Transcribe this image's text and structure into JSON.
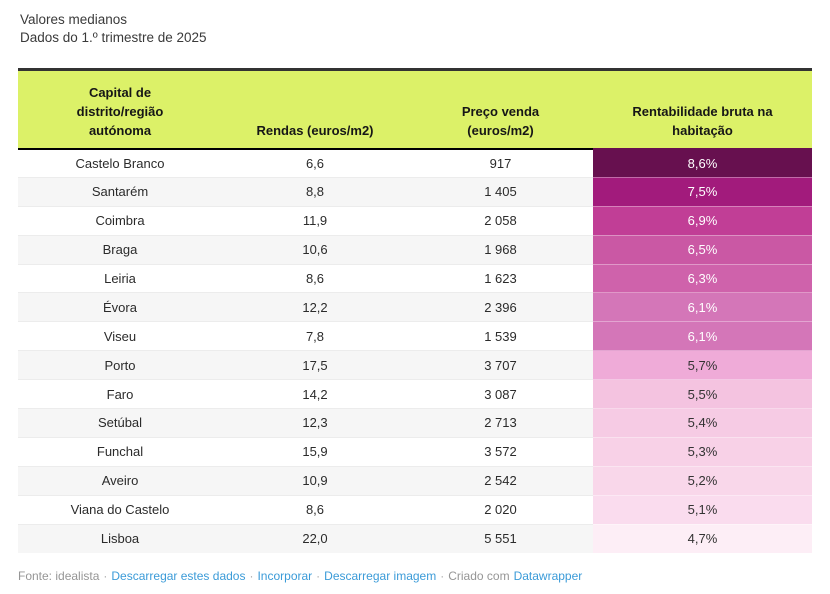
{
  "header": {
    "title": "Valores medianos",
    "subtitle": "Dados do 1.º trimestre de 2025"
  },
  "chart_data": {
    "type": "table",
    "title": "Valores medianos",
    "subtitle": "Dados do 1.º trimestre de 2025",
    "layout": {
      "header_background": "#dcf168",
      "zebra_striping": true,
      "cell_alignment": "center",
      "heatmap_column": "Rentabilidade bruta na habitação",
      "heatmap_palette": "white-pink-to-dark-purple, darker = higher yield"
    },
    "columns": [
      {
        "label": "Capital de\ndistrito/região\nautónoma"
      },
      {
        "label": "Rendas (euros/m2)"
      },
      {
        "label": "Preço venda\n(euros/m2)"
      },
      {
        "label": "Rentabilidade bruta na\nhabitação"
      }
    ],
    "rows": [
      {
        "capital": "Castelo Branco",
        "rendas": "6,6",
        "preco_venda": "917",
        "rentabilidade": "8,6%",
        "cell_color": "#67104f",
        "cell_text_color": "#ffffff"
      },
      {
        "capital": "Santarém",
        "rendas": "8,8",
        "preco_venda": "1 405",
        "rentabilidade": "7,5%",
        "cell_color": "#a21b7c",
        "cell_text_color": "#ffffff"
      },
      {
        "capital": "Coimbra",
        "rendas": "11,9",
        "preco_venda": "2 058",
        "rentabilidade": "6,9%",
        "cell_color": "#c13e96",
        "cell_text_color": "#ffffff"
      },
      {
        "capital": "Braga",
        "rendas": "10,6",
        "preco_venda": "1 968",
        "rentabilidade": "6,5%",
        "cell_color": "#ca58a4",
        "cell_text_color": "#ffffff"
      },
      {
        "capital": "Leiria",
        "rendas": "8,6",
        "preco_venda": "1 623",
        "rentabilidade": "6,3%",
        "cell_color": "#cf62ab",
        "cell_text_color": "#ffffff"
      },
      {
        "capital": "Évora",
        "rendas": "12,2",
        "preco_venda": "2 396",
        "rentabilidade": "6,1%",
        "cell_color": "#d476b8",
        "cell_text_color": "#ffffff"
      },
      {
        "capital": "Viseu",
        "rendas": "7,8",
        "preco_venda": "1 539",
        "rentabilidade": "6,1%",
        "cell_color": "#d476b8",
        "cell_text_color": "#ffffff"
      },
      {
        "capital": "Porto",
        "rendas": "17,5",
        "preco_venda": "3 707",
        "rentabilidade": "5,7%",
        "cell_color": "#efabd8",
        "cell_text_color": "#333333"
      },
      {
        "capital": "Faro",
        "rendas": "14,2",
        "preco_venda": "3 087",
        "rentabilidade": "5,5%",
        "cell_color": "#f4c3e0",
        "cell_text_color": "#333333"
      },
      {
        "capital": "Setúbal",
        "rendas": "12,3",
        "preco_venda": "2 713",
        "rentabilidade": "5,4%",
        "cell_color": "#f6cbe4",
        "cell_text_color": "#333333"
      },
      {
        "capital": "Funchal",
        "rendas": "15,9",
        "preco_venda": "3 572",
        "rentabilidade": "5,3%",
        "cell_color": "#f8d1e7",
        "cell_text_color": "#333333"
      },
      {
        "capital": "Aveiro",
        "rendas": "10,9",
        "preco_venda": "2 542",
        "rentabilidade": "5,2%",
        "cell_color": "#f9d7ea",
        "cell_text_color": "#333333"
      },
      {
        "capital": "Viana do Castelo",
        "rendas": "8,6",
        "preco_venda": "2 020",
        "rentabilidade": "5,1%",
        "cell_color": "#fadcee",
        "cell_text_color": "#333333"
      },
      {
        "capital": "Lisboa",
        "rendas": "22,0",
        "preco_venda": "5 551",
        "rentabilidade": "4,7%",
        "cell_color": "#fdeef6",
        "cell_text_color": "#333333"
      }
    ]
  },
  "footer": {
    "items": [
      {
        "name": "footer-source",
        "type": "text",
        "text": "Fonte: idealista"
      },
      {
        "name": "footer-separator",
        "type": "sep",
        "text": "·"
      },
      {
        "name": "footer-link-download-data",
        "type": "link",
        "text": "Descarregar estes dados"
      },
      {
        "name": "footer-separator",
        "type": "sep",
        "text": "·"
      },
      {
        "name": "footer-link-embed",
        "type": "link",
        "text": "Incorporar"
      },
      {
        "name": "footer-separator",
        "type": "sep",
        "text": "·"
      },
      {
        "name": "footer-link-download-image",
        "type": "link",
        "text": "Descarregar imagem"
      },
      {
        "name": "footer-separator",
        "type": "sep",
        "text": "·"
      },
      {
        "name": "footer-created-with",
        "type": "text",
        "text": "Criado com"
      },
      {
        "name": "footer-link-datawrapper",
        "type": "link",
        "text": "Datawrapper"
      }
    ]
  },
  "style": {
    "header_background": "#dcf168",
    "table_top_border": "#333333",
    "zebra_row_color": "#f6f6f6",
    "link_color": "#3b9bd8",
    "footer_text_color": "#969696"
  }
}
